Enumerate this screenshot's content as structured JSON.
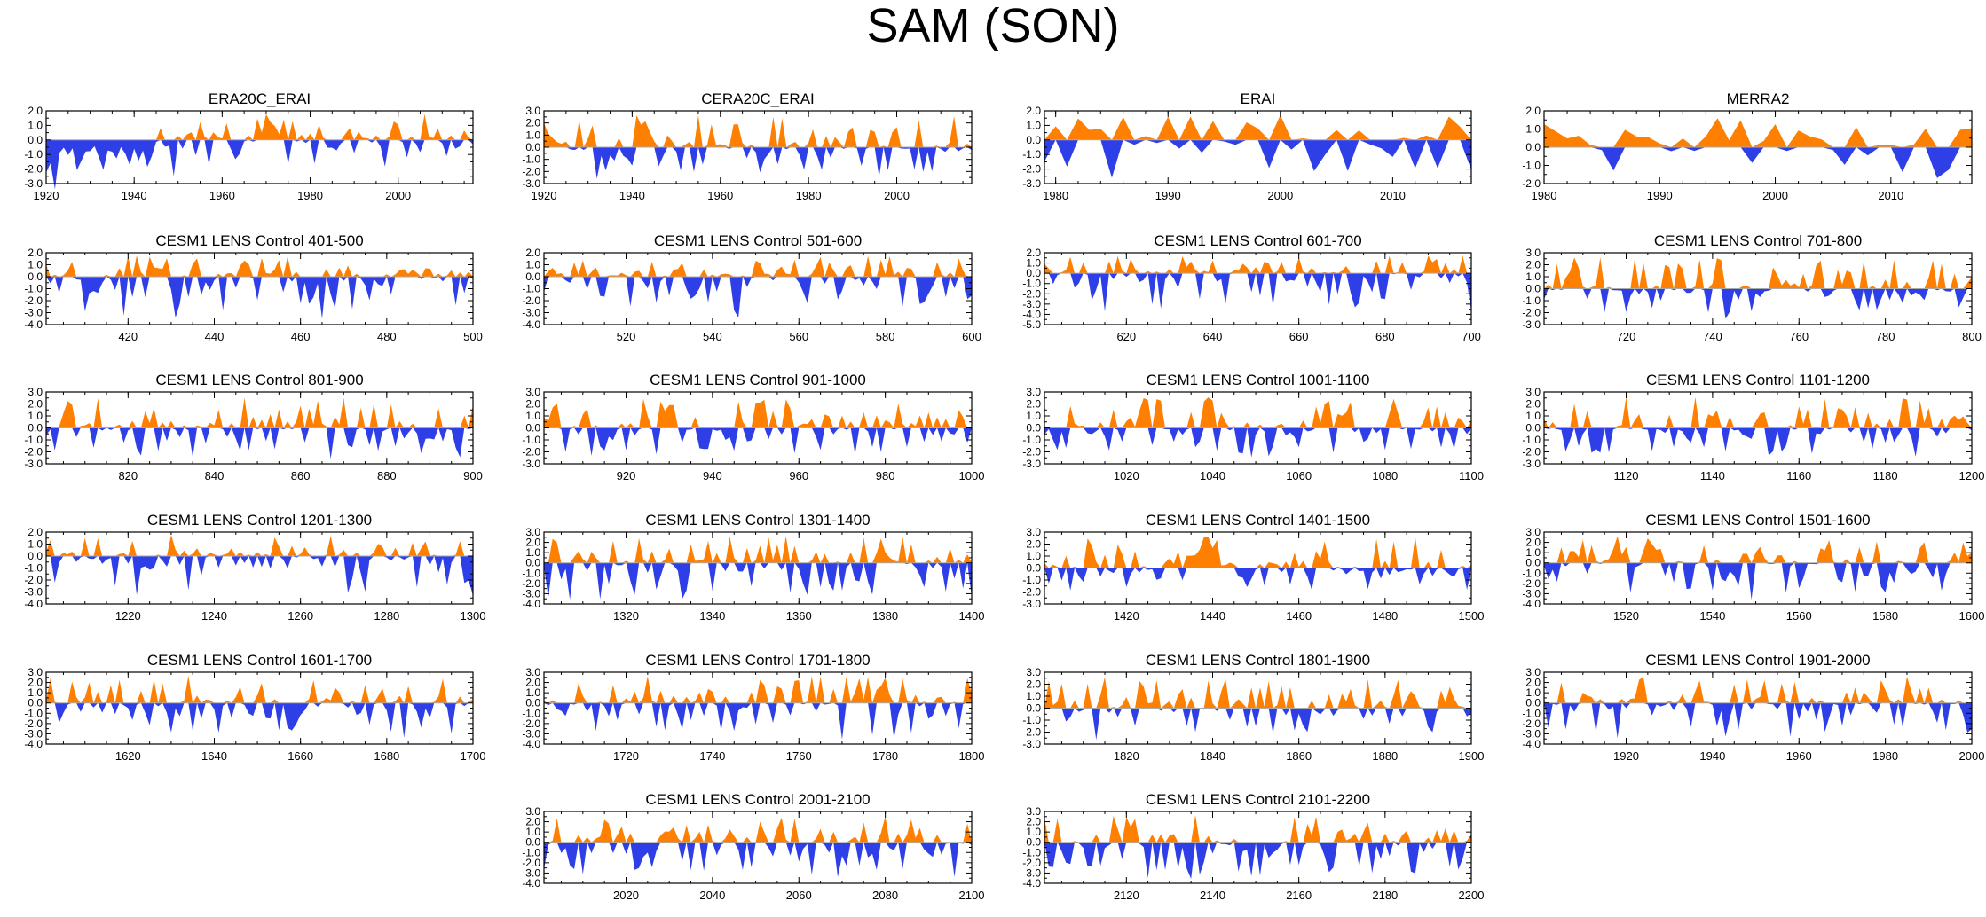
{
  "title": "SAM (SON)",
  "colors": {
    "positive": "#ff8000",
    "negative": "#2f3fe8",
    "axis": "#000000"
  },
  "chart_data": [
    {
      "type": "area",
      "title": "ERA20C_ERAI",
      "xlim": [
        1920,
        2017
      ],
      "xticks": [
        "1920",
        "1940",
        "1960",
        "1980",
        "2000"
      ],
      "xtick_values": [
        1920,
        1940,
        1960,
        1980,
        2000
      ],
      "ylim": [
        -3.0,
        2.0
      ],
      "yticks": [
        "2.0",
        "1.0",
        "0.0",
        "-1.0",
        "-2.0",
        "-3.0"
      ],
      "ytick_values": [
        2,
        1,
        0,
        -1,
        -2,
        -3
      ],
      "seed": 11
    },
    {
      "type": "area",
      "title": "CERA20C_ERAI",
      "xlim": [
        1920,
        2017
      ],
      "xticks": [
        "1920",
        "1940",
        "1960",
        "1980",
        "2000"
      ],
      "xtick_values": [
        1920,
        1940,
        1960,
        1980,
        2000
      ],
      "ylim": [
        -3.0,
        3.0
      ],
      "yticks": [
        "3.0",
        "2.0",
        "1.0",
        "0.0",
        "-1.0",
        "-2.0",
        "-3.0"
      ],
      "ytick_values": [
        3,
        2,
        1,
        0,
        -1,
        -2,
        -3
      ],
      "seed": 12
    },
    {
      "type": "area",
      "title": "ERAI",
      "xlim": [
        1979,
        2017
      ],
      "xticks": [
        "1980",
        "1990",
        "2000",
        "2010"
      ],
      "xtick_values": [
        1980,
        1990,
        2000,
        2010
      ],
      "ylim": [
        -3.0,
        2.0
      ],
      "yticks": [
        "2.0",
        "1.0",
        "0.0",
        "-1.0",
        "-2.0",
        "-3.0"
      ],
      "ytick_values": [
        2,
        1,
        0,
        -1,
        -2,
        -3
      ],
      "seed": 13
    },
    {
      "type": "area",
      "title": "MERRA2",
      "xlim": [
        1980,
        2017
      ],
      "xticks": [
        "1980",
        "1990",
        "2000",
        "2010"
      ],
      "xtick_values": [
        1980,
        1990,
        2000,
        2010
      ],
      "ylim": [
        -2.0,
        2.0
      ],
      "yticks": [
        "2.0",
        "1.0",
        "0.0",
        "-1.0",
        "-2.0"
      ],
      "ytick_values": [
        2,
        1,
        0,
        -1,
        -2
      ],
      "seed": 14
    },
    {
      "type": "area",
      "title": "CESM1 LENS Control 401-500",
      "xlim": [
        401,
        500
      ],
      "xticks": [
        "420",
        "440",
        "460",
        "480",
        "500"
      ],
      "xtick_values": [
        420,
        440,
        460,
        480,
        500
      ],
      "ylim": [
        -4.0,
        2.0
      ],
      "yticks": [
        "2.0",
        "1.0",
        "0.0",
        "-1.0",
        "-2.0",
        "-3.0",
        "-4.0"
      ],
      "ytick_values": [
        2,
        1,
        0,
        -1,
        -2,
        -3,
        -4
      ],
      "seed": 21
    },
    {
      "type": "area",
      "title": "CESM1 LENS Control 501-600",
      "xlim": [
        501,
        600
      ],
      "xticks": [
        "520",
        "540",
        "560",
        "580",
        "600"
      ],
      "xtick_values": [
        520,
        540,
        560,
        580,
        600
      ],
      "ylim": [
        -4.0,
        2.0
      ],
      "yticks": [
        "2.0",
        "1.0",
        "0.0",
        "-1.0",
        "-2.0",
        "-3.0",
        "-4.0"
      ],
      "ytick_values": [
        2,
        1,
        0,
        -1,
        -2,
        -3,
        -4
      ],
      "seed": 22
    },
    {
      "type": "area",
      "title": "CESM1 LENS Control 601-700",
      "xlim": [
        601,
        700
      ],
      "xticks": [
        "620",
        "640",
        "660",
        "680",
        "700"
      ],
      "xtick_values": [
        620,
        640,
        660,
        680,
        700
      ],
      "ylim": [
        -5.0,
        2.0
      ],
      "yticks": [
        "2.0",
        "1.0",
        "0.0",
        "-1.0",
        "-2.0",
        "-3.0",
        "-4.0",
        "-5.0"
      ],
      "ytick_values": [
        2,
        1,
        0,
        -1,
        -2,
        -3,
        -4,
        -5
      ],
      "seed": 23
    },
    {
      "type": "area",
      "title": "CESM1 LENS Control 701-800",
      "xlim": [
        701,
        800
      ],
      "xticks": [
        "720",
        "740",
        "760",
        "780",
        "800"
      ],
      "xtick_values": [
        720,
        740,
        760,
        780,
        800
      ],
      "ylim": [
        -3.0,
        3.0
      ],
      "yticks": [
        "3.0",
        "2.0",
        "1.0",
        "0.0",
        "-1.0",
        "-2.0",
        "-3.0"
      ],
      "ytick_values": [
        3,
        2,
        1,
        0,
        -1,
        -2,
        -3
      ],
      "seed": 24
    },
    {
      "type": "area",
      "title": "CESM1 LENS Control 801-900",
      "xlim": [
        801,
        900
      ],
      "xticks": [
        "820",
        "840",
        "860",
        "880",
        "900"
      ],
      "xtick_values": [
        820,
        840,
        860,
        880,
        900
      ],
      "ylim": [
        -3.0,
        3.0
      ],
      "yticks": [
        "3.0",
        "2.0",
        "1.0",
        "0.0",
        "-1.0",
        "-2.0",
        "-3.0"
      ],
      "ytick_values": [
        3,
        2,
        1,
        0,
        -1,
        -2,
        -3
      ],
      "seed": 31
    },
    {
      "type": "area",
      "title": "CESM1 LENS Control 901-1000",
      "xlim": [
        901,
        1000
      ],
      "xticks": [
        "920",
        "940",
        "960",
        "980",
        "1000"
      ],
      "xtick_values": [
        920,
        940,
        960,
        980,
        1000
      ],
      "ylim": [
        -3.0,
        3.0
      ],
      "yticks": [
        "3.0",
        "2.0",
        "1.0",
        "0.0",
        "-1.0",
        "-2.0",
        "-3.0"
      ],
      "ytick_values": [
        3,
        2,
        1,
        0,
        -1,
        -2,
        -3
      ],
      "seed": 32
    },
    {
      "type": "area",
      "title": "CESM1 LENS Control 1001-1100",
      "xlim": [
        1001,
        1100
      ],
      "xticks": [
        "1020",
        "1040",
        "1060",
        "1080",
        "1100"
      ],
      "xtick_values": [
        1020,
        1040,
        1060,
        1080,
        1100
      ],
      "ylim": [
        -3.0,
        3.0
      ],
      "yticks": [
        "3.0",
        "2.0",
        "1.0",
        "0.0",
        "-1.0",
        "-2.0",
        "-3.0"
      ],
      "ytick_values": [
        3,
        2,
        1,
        0,
        -1,
        -2,
        -3
      ],
      "seed": 33
    },
    {
      "type": "area",
      "title": "CESM1 LENS Control 1101-1200",
      "xlim": [
        1101,
        1200
      ],
      "xticks": [
        "1120",
        "1140",
        "1160",
        "1180",
        "1200"
      ],
      "xtick_values": [
        1120,
        1140,
        1160,
        1180,
        1200
      ],
      "ylim": [
        -3.0,
        3.0
      ],
      "yticks": [
        "3.0",
        "2.0",
        "1.0",
        "0.0",
        "-1.0",
        "-2.0",
        "-3.0"
      ],
      "ytick_values": [
        3,
        2,
        1,
        0,
        -1,
        -2,
        -3
      ],
      "seed": 34
    },
    {
      "type": "area",
      "title": "CESM1 LENS Control 1201-1300",
      "xlim": [
        1201,
        1300
      ],
      "xticks": [
        "1220",
        "1240",
        "1260",
        "1280",
        "1300"
      ],
      "xtick_values": [
        1220,
        1240,
        1260,
        1280,
        1300
      ],
      "ylim": [
        -4.0,
        2.0
      ],
      "yticks": [
        "2.0",
        "1.0",
        "0.0",
        "-1.0",
        "-2.0",
        "-3.0",
        "-4.0"
      ],
      "ytick_values": [
        2,
        1,
        0,
        -1,
        -2,
        -3,
        -4
      ],
      "seed": 41
    },
    {
      "type": "area",
      "title": "CESM1 LENS Control 1301-1400",
      "xlim": [
        1301,
        1400
      ],
      "xticks": [
        "1320",
        "1340",
        "1360",
        "1380",
        "1400"
      ],
      "xtick_values": [
        1320,
        1340,
        1360,
        1380,
        1400
      ],
      "ylim": [
        -4.0,
        3.0
      ],
      "yticks": [
        "3.0",
        "2.0",
        "1.0",
        "0.0",
        "-1.0",
        "-2.0",
        "-3.0",
        "-4.0"
      ],
      "ytick_values": [
        3,
        2,
        1,
        0,
        -1,
        -2,
        -3,
        -4
      ],
      "seed": 42
    },
    {
      "type": "area",
      "title": "CESM1 LENS Control 1401-1500",
      "xlim": [
        1401,
        1500
      ],
      "xticks": [
        "1420",
        "1440",
        "1460",
        "1480",
        "1500"
      ],
      "xtick_values": [
        1420,
        1440,
        1460,
        1480,
        1500
      ],
      "ylim": [
        -3.0,
        3.0
      ],
      "yticks": [
        "3.0",
        "2.0",
        "1.0",
        "0.0",
        "-1.0",
        "-2.0",
        "-3.0"
      ],
      "ytick_values": [
        3,
        2,
        1,
        0,
        -1,
        -2,
        -3
      ],
      "seed": 43
    },
    {
      "type": "area",
      "title": "CESM1 LENS Control 1501-1600",
      "xlim": [
        1501,
        1600
      ],
      "xticks": [
        "1520",
        "1540",
        "1560",
        "1580",
        "1600"
      ],
      "xtick_values": [
        1520,
        1540,
        1560,
        1580,
        1600
      ],
      "ylim": [
        -4.0,
        3.0
      ],
      "yticks": [
        "3.0",
        "2.0",
        "1.0",
        "0.0",
        "-1.0",
        "-2.0",
        "-3.0",
        "-4.0"
      ],
      "ytick_values": [
        3,
        2,
        1,
        0,
        -1,
        -2,
        -3,
        -4
      ],
      "seed": 44
    },
    {
      "type": "area",
      "title": "CESM1 LENS Control 1601-1700",
      "xlim": [
        1601,
        1700
      ],
      "xticks": [
        "1620",
        "1640",
        "1660",
        "1680",
        "1700"
      ],
      "xtick_values": [
        1620,
        1640,
        1660,
        1680,
        1700
      ],
      "ylim": [
        -4.0,
        3.0
      ],
      "yticks": [
        "3.0",
        "2.0",
        "1.0",
        "0.0",
        "-1.0",
        "-2.0",
        "-3.0",
        "-4.0"
      ],
      "ytick_values": [
        3,
        2,
        1,
        0,
        -1,
        -2,
        -3,
        -4
      ],
      "seed": 51
    },
    {
      "type": "area",
      "title": "CESM1 LENS Control 1701-1800",
      "xlim": [
        1701,
        1800
      ],
      "xticks": [
        "1720",
        "1740",
        "1760",
        "1780",
        "1800"
      ],
      "xtick_values": [
        1720,
        1740,
        1760,
        1780,
        1800
      ],
      "ylim": [
        -4.0,
        3.0
      ],
      "yticks": [
        "3.0",
        "2.0",
        "1.0",
        "0.0",
        "-1.0",
        "-2.0",
        "-3.0",
        "-4.0"
      ],
      "ytick_values": [
        3,
        2,
        1,
        0,
        -1,
        -2,
        -3,
        -4
      ],
      "seed": 52
    },
    {
      "type": "area",
      "title": "CESM1 LENS Control 1801-1900",
      "xlim": [
        1801,
        1900
      ],
      "xticks": [
        "1820",
        "1840",
        "1860",
        "1880",
        "1900"
      ],
      "xtick_values": [
        1820,
        1840,
        1860,
        1880,
        1900
      ],
      "ylim": [
        -3.0,
        3.0
      ],
      "yticks": [
        "3.0",
        "2.0",
        "1.0",
        "0.0",
        "-1.0",
        "-2.0",
        "-3.0"
      ],
      "ytick_values": [
        3,
        2,
        1,
        0,
        -1,
        -2,
        -3
      ],
      "seed": 53
    },
    {
      "type": "area",
      "title": "CESM1 LENS Control 1901-2000",
      "xlim": [
        1901,
        2000
      ],
      "xticks": [
        "1920",
        "1940",
        "1960",
        "1980",
        "2000"
      ],
      "xtick_values": [
        1920,
        1940,
        1960,
        1980,
        2000
      ],
      "ylim": [
        -4.0,
        3.0
      ],
      "yticks": [
        "3.0",
        "2.0",
        "1.0",
        "0.0",
        "-1.0",
        "-2.0",
        "-3.0",
        "-4.0"
      ],
      "ytick_values": [
        3,
        2,
        1,
        0,
        -1,
        -2,
        -3,
        -4
      ],
      "seed": 54
    },
    {
      "type": "area",
      "title": "CESM1 LENS Control 2001-2100",
      "xlim": [
        2001,
        2100
      ],
      "xticks": [
        "2020",
        "2040",
        "2060",
        "2080",
        "2100"
      ],
      "xtick_values": [
        2020,
        2040,
        2060,
        2080,
        2100
      ],
      "ylim": [
        -4.0,
        3.0
      ],
      "yticks": [
        "3.0",
        "2.0",
        "1.0",
        "0.0",
        "-1.0",
        "-2.0",
        "-3.0",
        "-4.0"
      ],
      "ytick_values": [
        3,
        2,
        1,
        0,
        -1,
        -2,
        -3,
        -4
      ],
      "seed": 61
    },
    {
      "type": "area",
      "title": "CESM1 LENS Control 2101-2200",
      "xlim": [
        2101,
        2200
      ],
      "xticks": [
        "2120",
        "2140",
        "2160",
        "2180",
        "2200"
      ],
      "xtick_values": [
        2120,
        2140,
        2160,
        2180,
        2200
      ],
      "ylim": [
        -4.0,
        3.0
      ],
      "yticks": [
        "3.0",
        "2.0",
        "1.0",
        "0.0",
        "-1.0",
        "-2.0",
        "-3.0",
        "-4.0"
      ],
      "ytick_values": [
        3,
        2,
        1,
        0,
        -1,
        -2,
        -3,
        -4
      ],
      "seed": 62
    }
  ]
}
